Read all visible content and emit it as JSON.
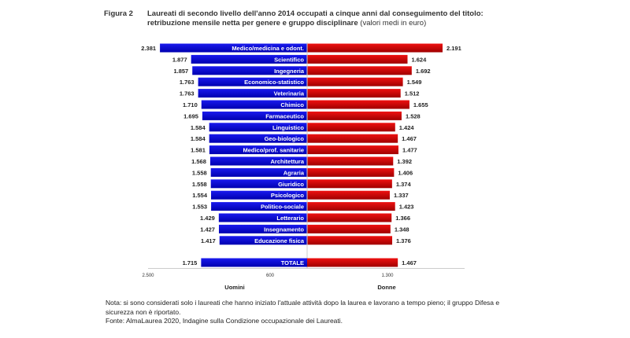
{
  "figure_label": "Figura 2",
  "chart_data": {
    "type": "bar",
    "title": "Laureati di secondo livello dell'anno 2014 occupati a cinque anni dal conseguimento del titolo:",
    "subtitle": "retribuzione mensile netta per genere e gruppo disciplinare",
    "subtitle_note": "(valori medi in euro)",
    "categories": [
      "Medico/medicina e odont.",
      "Scientifico",
      "Ingegneria",
      "Economico-statistico",
      "Veterinaria",
      "Chimico",
      "Farmaceutico",
      "Linguistico",
      "Geo-biologico",
      "Medico/prof. sanitarie",
      "Architettura",
      "Agraria",
      "Giuridico",
      "Psicologico",
      "Politico-sociale",
      "Letterario",
      "Insegnamento",
      "Educazione fisica"
    ],
    "series": [
      {
        "name": "Uomini",
        "color": "#0000cc",
        "values": [
          2381,
          1877,
          1857,
          1763,
          1763,
          1710,
          1695,
          1584,
          1584,
          1581,
          1568,
          1558,
          1558,
          1554,
          1553,
          1429,
          1427,
          1417
        ],
        "labels": [
          "2.381",
          "1.877",
          "1.857",
          "1.763",
          "1.763",
          "1.710",
          "1.695",
          "1.584",
          "1.584",
          "1.581",
          "1.568",
          "1.558",
          "1.558",
          "1.554",
          "1.553",
          "1.429",
          "1.427",
          "1.417"
        ]
      },
      {
        "name": "Donne",
        "color": "#cc0000",
        "values": [
          2191,
          1624,
          1692,
          1549,
          1512,
          1655,
          1528,
          1424,
          1467,
          1477,
          1392,
          1406,
          1374,
          1337,
          1423,
          1366,
          1348,
          1376
        ],
        "labels": [
          "2.191",
          "1.624",
          "1.692",
          "1.549",
          "1.512",
          "1.655",
          "1.528",
          "1.424",
          "1.467",
          "1.477",
          "1.392",
          "1.406",
          "1.374",
          "1.337",
          "1.423",
          "1.366",
          "1.348",
          "1.376"
        ]
      }
    ],
    "total": {
      "label": "TOTALE",
      "uomini": 1715,
      "donne": 1467,
      "uomini_label": "1.715",
      "donne_label": "1.467"
    },
    "x_tick_labels": [
      "2.500",
      "600",
      "1.300"
    ],
    "orientation": "horizontal diverging",
    "grid": false,
    "legend": "bottom"
  },
  "notes": {
    "line1": "Nota: si sono considerati solo i laureati che hanno iniziato l'attuale attività dopo la laurea e lavorano a tempo pieno; il gruppo Difesa e",
    "line2": "sicurezza non è riportato.",
    "line3": "Fonte: AlmaLaurea 2020, Indagine sulla Condizione occupazionale dei Laureati."
  }
}
